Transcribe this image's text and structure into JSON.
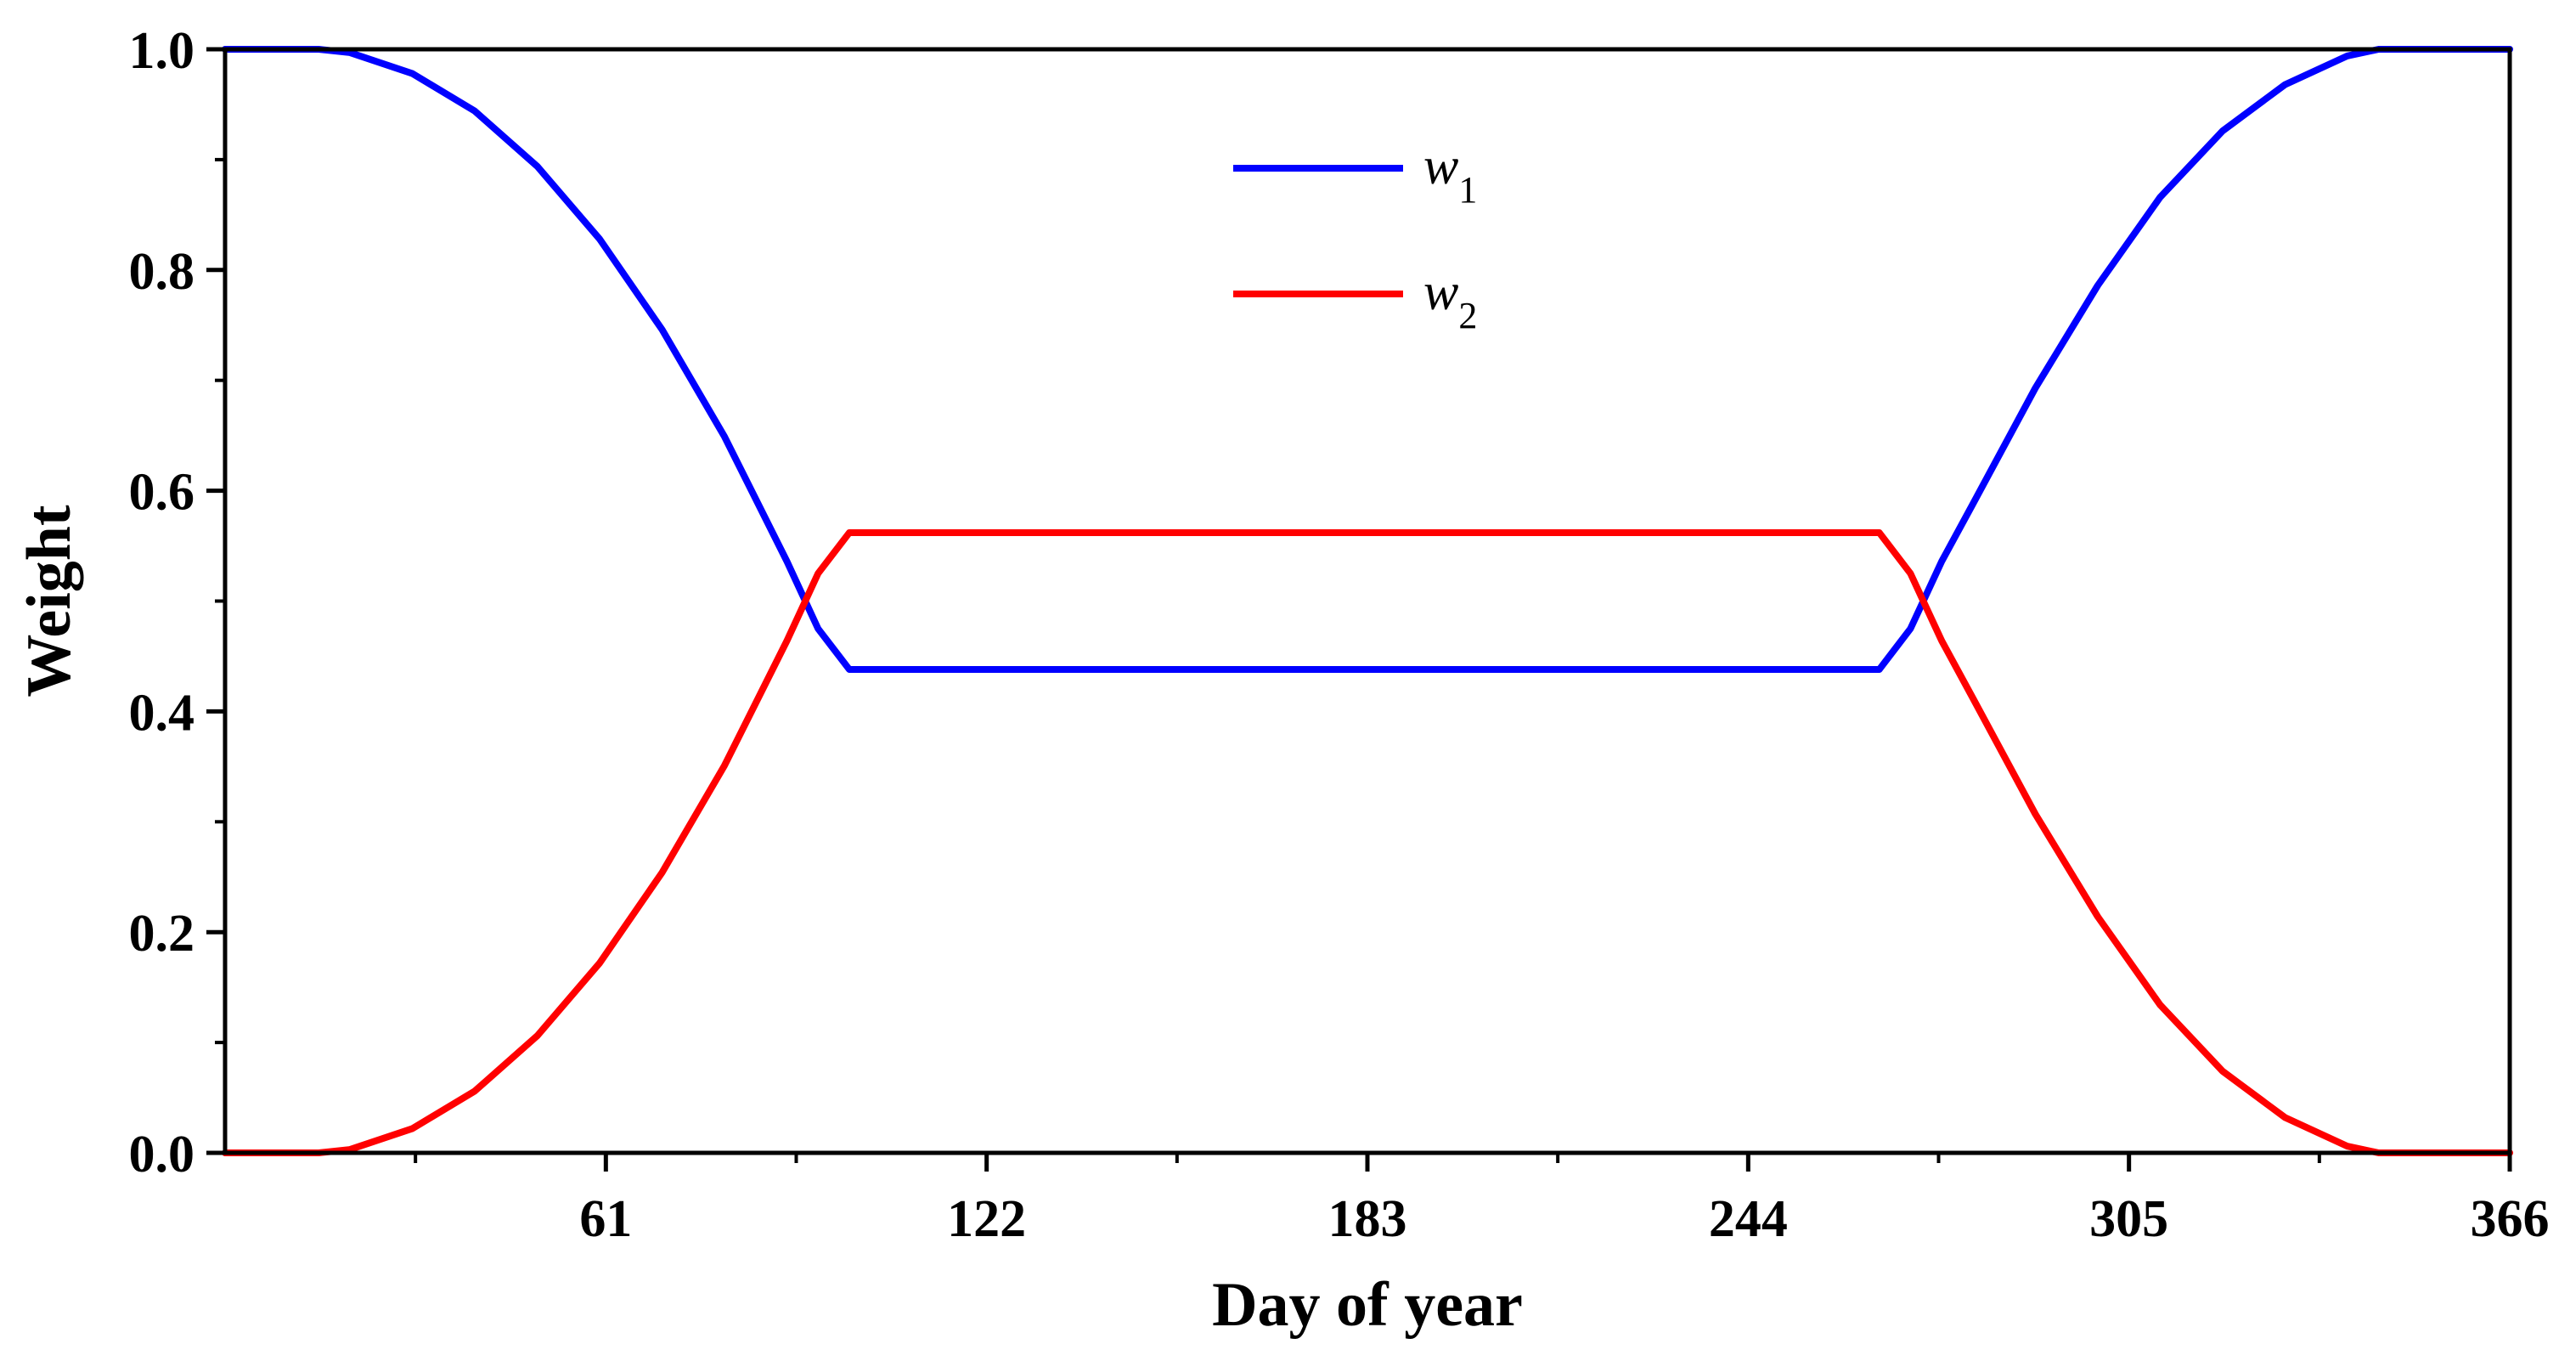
{
  "chart_data": {
    "type": "line",
    "title": "",
    "xlabel": "Day of year",
    "ylabel": "Weight",
    "xlim": [
      0,
      366
    ],
    "ylim": [
      0,
      1.0
    ],
    "xticks": [
      61,
      122,
      183,
      244,
      305,
      366
    ],
    "xtick_labels": [
      "61",
      "122",
      "183",
      "244",
      "305",
      "366"
    ],
    "yticks": [
      0,
      0.2,
      0.4,
      0.6,
      0.8,
      1.0
    ],
    "ytick_labels": [
      "0.0",
      "0.2",
      "0.4",
      "0.6",
      "0.8",
      "1.0"
    ],
    "grid": false,
    "legend_position": "top-center",
    "series": [
      {
        "name": "w1",
        "label_main": "w",
        "label_sub": "1",
        "color": "#0000ff",
        "x": [
          0,
          10,
          15,
          20,
          30,
          40,
          50,
          60,
          70,
          80,
          90,
          95,
          100,
          265,
          270,
          275,
          280,
          290,
          300,
          310,
          320,
          330,
          340,
          345,
          350,
          356,
          366
        ],
        "y": [
          1.0,
          1.0,
          1.0,
          0.997,
          0.978,
          0.944,
          0.894,
          0.828,
          0.746,
          0.649,
          0.536,
          0.475,
          0.438,
          0.438,
          0.475,
          0.536,
          0.588,
          0.693,
          0.786,
          0.866,
          0.926,
          0.968,
          0.994,
          1.0,
          1.0,
          1.0,
          1.0
        ]
      },
      {
        "name": "w2",
        "label_main": "w",
        "label_sub": "2",
        "color": "#ff0000",
        "x": [
          0,
          10,
          15,
          20,
          30,
          40,
          50,
          60,
          70,
          80,
          90,
          95,
          100,
          265,
          270,
          275,
          280,
          290,
          300,
          310,
          320,
          330,
          340,
          345,
          350,
          356,
          366
        ],
        "y": [
          0.0,
          0.0,
          0.0,
          0.003,
          0.022,
          0.056,
          0.106,
          0.172,
          0.254,
          0.351,
          0.464,
          0.525,
          0.562,
          0.562,
          0.525,
          0.464,
          0.412,
          0.307,
          0.214,
          0.134,
          0.074,
          0.032,
          0.006,
          0.0,
          0.0,
          0.0,
          0.0
        ]
      }
    ]
  }
}
